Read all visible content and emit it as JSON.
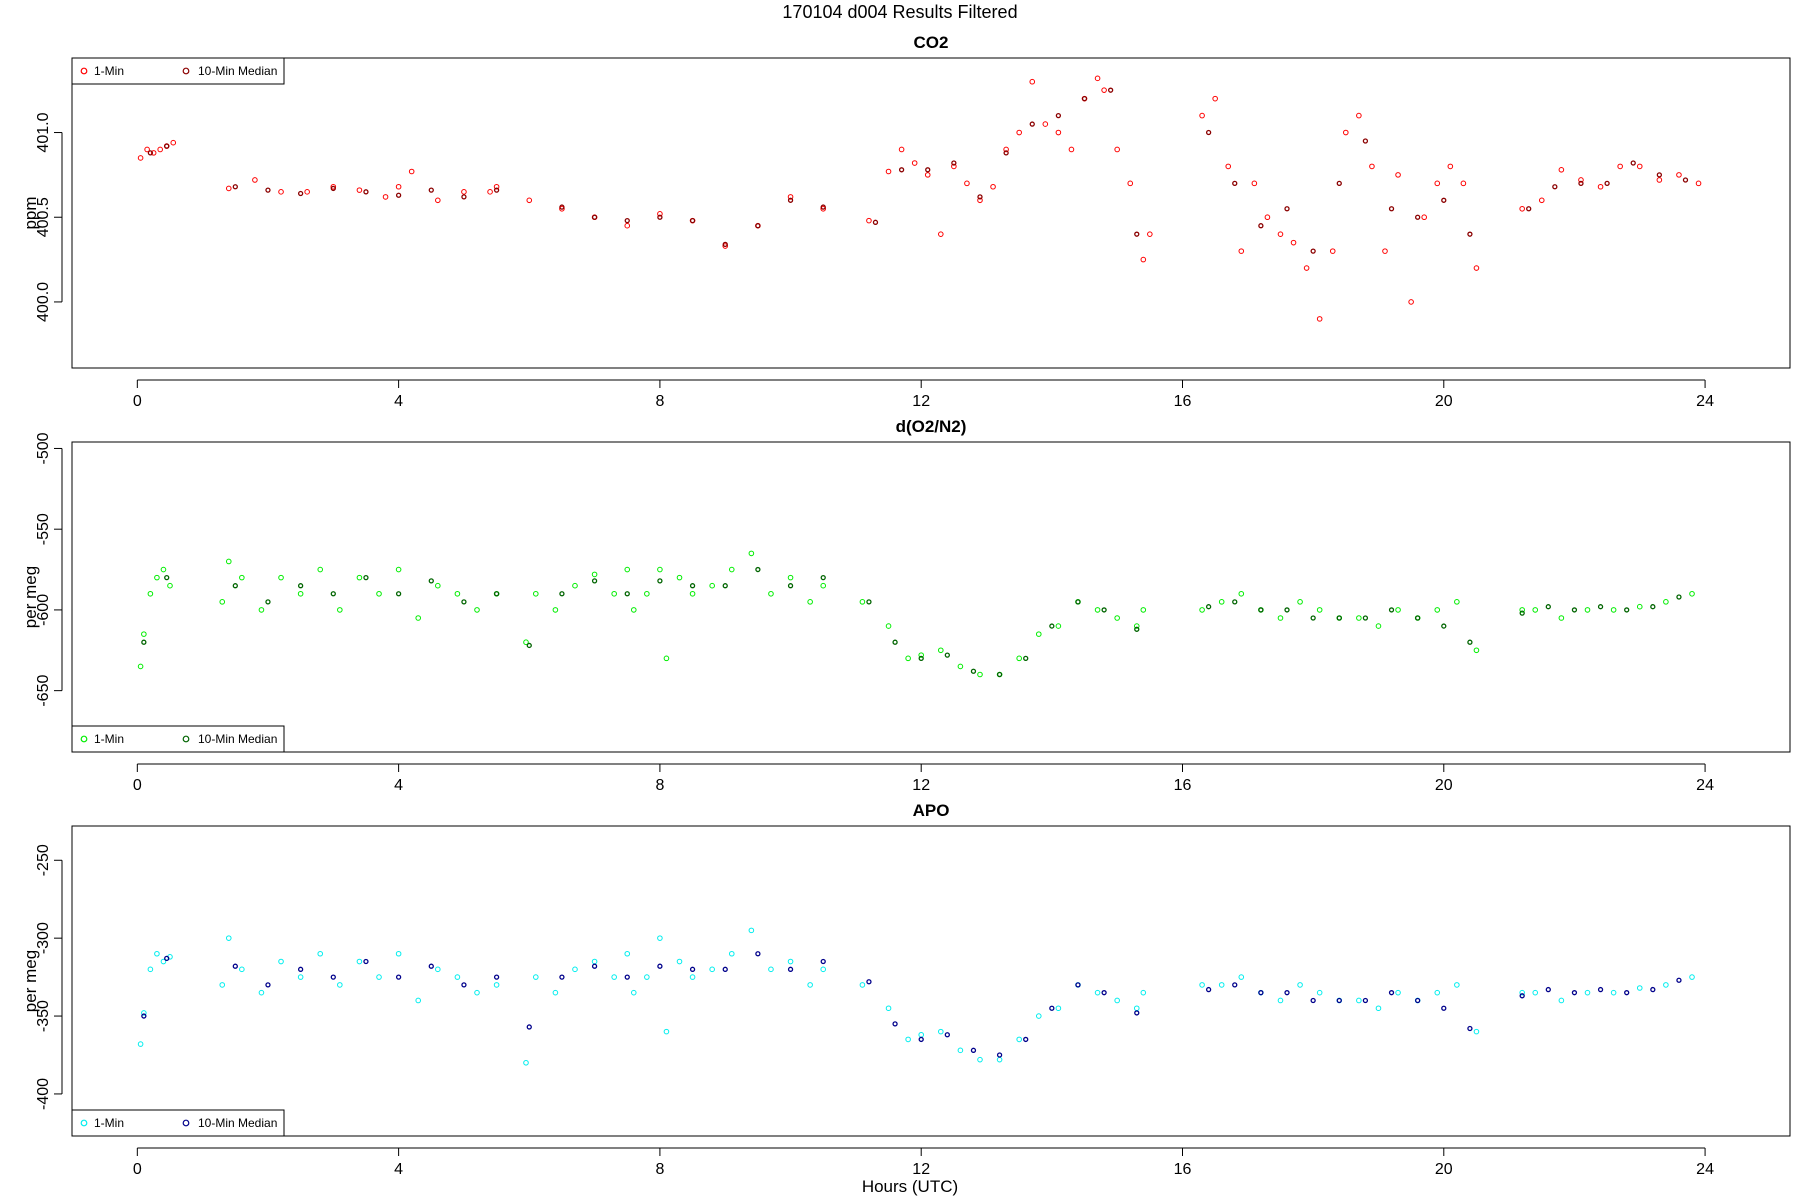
{
  "figure": {
    "suptitle": "170104   d004   Results Filtered",
    "xlabel": "Hours (UTC)"
  },
  "chart_data": [
    {
      "type": "scatter",
      "title": "CO2",
      "ylabel": "ppm",
      "xlim": [
        -1.0,
        25.3
      ],
      "ylim": [
        399.61,
        401.44
      ],
      "xticks": [
        "0",
        "4",
        "8",
        "12",
        "16",
        "20",
        "24"
      ],
      "yticks": [
        "400.0",
        "400.5",
        "401.0"
      ],
      "legend": {
        "position": "top-left",
        "labels": [
          "1-Min",
          "10-Min Median"
        ]
      },
      "colors": {
        "one_min": "#ff0000",
        "median": "#8b0000"
      },
      "series": [
        {
          "name": "1-Min",
          "x": [
            0.05,
            0.15,
            0.25,
            0.35,
            0.45,
            0.55,
            1.4,
            1.8,
            2.2,
            2.6,
            3.0,
            3.4,
            3.8,
            4.0,
            4.2,
            4.6,
            5.0,
            5.4,
            5.5,
            6.0,
            6.5,
            7.0,
            7.5,
            8.0,
            8.5,
            9.0,
            9.5,
            10.0,
            10.5,
            11.2,
            11.5,
            11.7,
            11.9,
            12.1,
            12.3,
            12.5,
            12.7,
            12.9,
            13.1,
            13.3,
            13.5,
            13.7,
            13.9,
            14.1,
            14.3,
            14.5,
            14.7,
            14.8,
            15.0,
            15.2,
            15.4,
            15.5,
            16.3,
            16.5,
            16.7,
            16.9,
            17.1,
            17.3,
            17.5,
            17.7,
            17.9,
            18.1,
            18.3,
            18.5,
            18.7,
            18.9,
            19.1,
            19.3,
            19.5,
            19.7,
            19.9,
            20.1,
            20.3,
            20.5,
            21.2,
            21.5,
            21.8,
            22.1,
            22.4,
            22.7,
            23.0,
            23.3,
            23.6,
            23.9
          ],
          "y": [
            400.85,
            400.9,
            400.88,
            400.9,
            400.92,
            400.94,
            400.67,
            400.72,
            400.65,
            400.65,
            400.68,
            400.66,
            400.62,
            400.68,
            400.77,
            400.6,
            400.65,
            400.65,
            400.68,
            400.6,
            400.55,
            400.5,
            400.45,
            400.52,
            400.48,
            400.33,
            400.45,
            400.62,
            400.55,
            400.48,
            400.77,
            400.9,
            400.82,
            400.75,
            400.4,
            400.8,
            400.7,
            400.6,
            400.68,
            400.9,
            401.0,
            401.3,
            401.05,
            401.0,
            400.9,
            401.2,
            401.32,
            401.25,
            400.9,
            400.7,
            400.25,
            400.4,
            401.1,
            401.2,
            400.8,
            400.3,
            400.7,
            400.5,
            400.4,
            400.35,
            400.2,
            399.9,
            400.3,
            401.0,
            401.1,
            400.8,
            400.3,
            400.75,
            400.0,
            400.5,
            400.7,
            400.8,
            400.7,
            400.2,
            400.55,
            400.6,
            400.78,
            400.72,
            400.68,
            400.8,
            400.8,
            400.72,
            400.75,
            400.7
          ]
        },
        {
          "name": "10-Min Median",
          "x": [
            0.2,
            0.45,
            1.5,
            2.0,
            2.5,
            3.0,
            3.5,
            4.0,
            4.5,
            5.0,
            5.5,
            6.5,
            7.0,
            7.5,
            8.0,
            8.5,
            9.0,
            9.5,
            10.0,
            10.5,
            11.3,
            11.7,
            12.1,
            12.5,
            12.9,
            13.3,
            13.7,
            14.1,
            14.5,
            14.9,
            15.3,
            16.4,
            16.8,
            17.2,
            17.6,
            18.0,
            18.4,
            18.8,
            19.2,
            19.6,
            20.0,
            20.4,
            21.3,
            21.7,
            22.1,
            22.5,
            22.9,
            23.3,
            23.7
          ],
          "y": [
            400.88,
            400.92,
            400.68,
            400.66,
            400.64,
            400.67,
            400.65,
            400.63,
            400.66,
            400.62,
            400.66,
            400.56,
            400.5,
            400.48,
            400.5,
            400.48,
            400.34,
            400.45,
            400.6,
            400.56,
            400.47,
            400.78,
            400.78,
            400.82,
            400.62,
            400.88,
            401.05,
            401.1,
            401.2,
            401.25,
            400.4,
            401.0,
            400.7,
            400.45,
            400.55,
            400.3,
            400.7,
            400.95,
            400.55,
            400.5,
            400.6,
            400.4,
            400.55,
            400.68,
            400.7,
            400.7,
            400.82,
            400.75,
            400.72
          ]
        }
      ]
    },
    {
      "type": "scatter",
      "title": "d(O2/N2)",
      "ylabel": "per meg",
      "xlim": [
        -1.0,
        25.3
      ],
      "ylim": [
        -688,
        -496
      ],
      "xticks": [
        "0",
        "4",
        "8",
        "12",
        "16",
        "20",
        "24"
      ],
      "yticks": [
        "-650",
        "-600",
        "-550",
        "-500"
      ],
      "legend": {
        "position": "bottom-left",
        "labels": [
          "1-Min",
          "10-Min Median"
        ]
      },
      "colors": {
        "one_min": "#00ee00",
        "median": "#006400"
      },
      "series": [
        {
          "name": "1-Min",
          "x": [
            0.05,
            0.1,
            0.2,
            0.3,
            0.4,
            0.5,
            1.3,
            1.4,
            1.6,
            1.9,
            2.2,
            2.5,
            2.8,
            3.1,
            3.4,
            3.7,
            4.0,
            4.3,
            4.6,
            4.9,
            5.2,
            5.5,
            5.95,
            6.1,
            6.4,
            6.7,
            7.0,
            7.3,
            7.5,
            7.6,
            7.8,
            8.0,
            8.1,
            8.3,
            8.5,
            8.8,
            9.1,
            9.4,
            9.7,
            10.0,
            10.3,
            10.5,
            11.1,
            11.5,
            11.8,
            12.0,
            12.3,
            12.6,
            12.9,
            13.2,
            13.5,
            13.8,
            14.1,
            14.4,
            14.7,
            15.0,
            15.3,
            15.4,
            16.3,
            16.6,
            16.9,
            17.2,
            17.5,
            17.8,
            18.1,
            18.4,
            18.7,
            19.0,
            19.3,
            19.6,
            19.9,
            20.2,
            20.5,
            21.2,
            21.4,
            21.8,
            22.2,
            22.6,
            23.0,
            23.4,
            23.8
          ],
          "y": [
            -635,
            -615,
            -590,
            -580,
            -575,
            -585,
            -595,
            -570,
            -580,
            -600,
            -580,
            -590,
            -575,
            -600,
            -580,
            -590,
            -575,
            -605,
            -585,
            -590,
            -600,
            -590,
            -620,
            -590,
            -600,
            -585,
            -578,
            -590,
            -575,
            -600,
            -590,
            -575,
            -630,
            -580,
            -590,
            -585,
            -575,
            -565,
            -590,
            -580,
            -595,
            -585,
            -595,
            -610,
            -630,
            -628,
            -625,
            -635,
            -640,
            -640,
            -630,
            -615,
            -610,
            -595,
            -600,
            -605,
            -610,
            -600,
            -600,
            -595,
            -590,
            -600,
            -605,
            -595,
            -600,
            -605,
            -605,
            -610,
            -600,
            -605,
            -600,
            -595,
            -625,
            -600,
            -600,
            -605,
            -600,
            -600,
            -598,
            -595,
            -590
          ]
        },
        {
          "name": "10-Min Median",
          "x": [
            0.1,
            0.45,
            1.5,
            2.0,
            2.5,
            3.0,
            3.5,
            4.0,
            4.5,
            5.0,
            5.5,
            6.0,
            6.5,
            7.0,
            7.5,
            8.0,
            8.5,
            9.0,
            9.5,
            10.0,
            10.5,
            11.2,
            11.6,
            12.0,
            12.4,
            12.8,
            13.2,
            13.6,
            14.0,
            14.4,
            14.8,
            15.3,
            16.4,
            16.8,
            17.2,
            17.6,
            18.0,
            18.4,
            18.8,
            19.2,
            19.6,
            20.0,
            20.4,
            21.2,
            21.6,
            22.0,
            22.4,
            22.8,
            23.2,
            23.6
          ],
          "y": [
            -620,
            -580,
            -585,
            -595,
            -585,
            -590,
            -580,
            -590,
            -582,
            -595,
            -590,
            -622,
            -590,
            -582,
            -590,
            -582,
            -585,
            -585,
            -575,
            -585,
            -580,
            -595,
            -620,
            -630,
            -628,
            -638,
            -640,
            -630,
            -610,
            -595,
            -600,
            -612,
            -598,
            -595,
            -600,
            -600,
            -605,
            -605,
            -605,
            -600,
            -605,
            -610,
            -620,
            -602,
            -598,
            -600,
            -598,
            -600,
            -598,
            -592
          ]
        }
      ]
    },
    {
      "type": "scatter",
      "title": "APO",
      "ylabel": "per meg",
      "xlim": [
        -1.0,
        25.3
      ],
      "ylim": [
        -427,
        -228
      ],
      "xticks": [
        "0",
        "4",
        "8",
        "12",
        "16",
        "20",
        "24"
      ],
      "yticks": [
        "-400",
        "-350",
        "-300",
        "-250"
      ],
      "legend": {
        "position": "bottom-left",
        "labels": [
          "1-Min",
          "10-Min Median"
        ]
      },
      "colors": {
        "one_min": "#00eeee",
        "median": "#00008b"
      },
      "series": [
        {
          "name": "1-Min",
          "x": [
            0.05,
            0.1,
            0.2,
            0.3,
            0.4,
            0.5,
            1.3,
            1.4,
            1.6,
            1.9,
            2.2,
            2.5,
            2.8,
            3.1,
            3.4,
            3.7,
            4.0,
            4.3,
            4.6,
            4.9,
            5.2,
            5.5,
            5.95,
            6.1,
            6.4,
            6.7,
            7.0,
            7.3,
            7.5,
            7.6,
            7.8,
            8.0,
            8.1,
            8.3,
            8.5,
            8.8,
            9.1,
            9.4,
            9.7,
            10.0,
            10.3,
            10.5,
            11.1,
            11.5,
            11.8,
            12.0,
            12.3,
            12.6,
            12.9,
            13.2,
            13.5,
            13.8,
            14.1,
            14.4,
            14.7,
            15.0,
            15.3,
            15.4,
            16.3,
            16.6,
            16.9,
            17.2,
            17.5,
            17.8,
            18.1,
            18.4,
            18.7,
            19.0,
            19.3,
            19.6,
            19.9,
            20.2,
            20.5,
            21.2,
            21.4,
            21.8,
            22.2,
            22.6,
            23.0,
            23.4,
            23.8
          ],
          "y": [
            -368,
            -348,
            -320,
            -310,
            -315,
            -312,
            -330,
            -300,
            -320,
            -335,
            -315,
            -325,
            -310,
            -330,
            -315,
            -325,
            -310,
            -340,
            -320,
            -325,
            -335,
            -330,
            -380,
            -325,
            -335,
            -320,
            -315,
            -325,
            -310,
            -335,
            -325,
            -300,
            -360,
            -315,
            -325,
            -320,
            -310,
            -295,
            -320,
            -315,
            -330,
            -320,
            -330,
            -345,
            -365,
            -362,
            -360,
            -372,
            -378,
            -378,
            -365,
            -350,
            -345,
            -330,
            -335,
            -340,
            -345,
            -335,
            -330,
            -330,
            -325,
            -335,
            -340,
            -330,
            -335,
            -340,
            -340,
            -345,
            -335,
            -340,
            -335,
            -330,
            -360,
            -335,
            -335,
            -340,
            -335,
            -335,
            -332,
            -330,
            -325
          ]
        },
        {
          "name": "10-Min Median",
          "x": [
            0.1,
            0.45,
            1.5,
            2.0,
            2.5,
            3.0,
            3.5,
            4.0,
            4.5,
            5.0,
            5.5,
            6.0,
            6.5,
            7.0,
            7.5,
            8.0,
            8.5,
            9.0,
            9.5,
            10.0,
            10.5,
            11.2,
            11.6,
            12.0,
            12.4,
            12.8,
            13.2,
            13.6,
            14.0,
            14.4,
            14.8,
            15.3,
            16.4,
            16.8,
            17.2,
            17.6,
            18.0,
            18.4,
            18.8,
            19.2,
            19.6,
            20.0,
            20.4,
            21.2,
            21.6,
            22.0,
            22.4,
            22.8,
            23.2,
            23.6
          ],
          "y": [
            -350,
            -313,
            -318,
            -330,
            -320,
            -325,
            -315,
            -325,
            -318,
            -330,
            -325,
            -357,
            -325,
            -318,
            -325,
            -318,
            -320,
            -320,
            -310,
            -320,
            -315,
            -328,
            -355,
            -365,
            -362,
            -372,
            -375,
            -365,
            -345,
            -330,
            -335,
            -348,
            -333,
            -330,
            -335,
            -335,
            -340,
            -340,
            -340,
            -335,
            -340,
            -345,
            -358,
            -337,
            -333,
            -335,
            -333,
            -335,
            -333,
            -327
          ]
        }
      ]
    }
  ]
}
